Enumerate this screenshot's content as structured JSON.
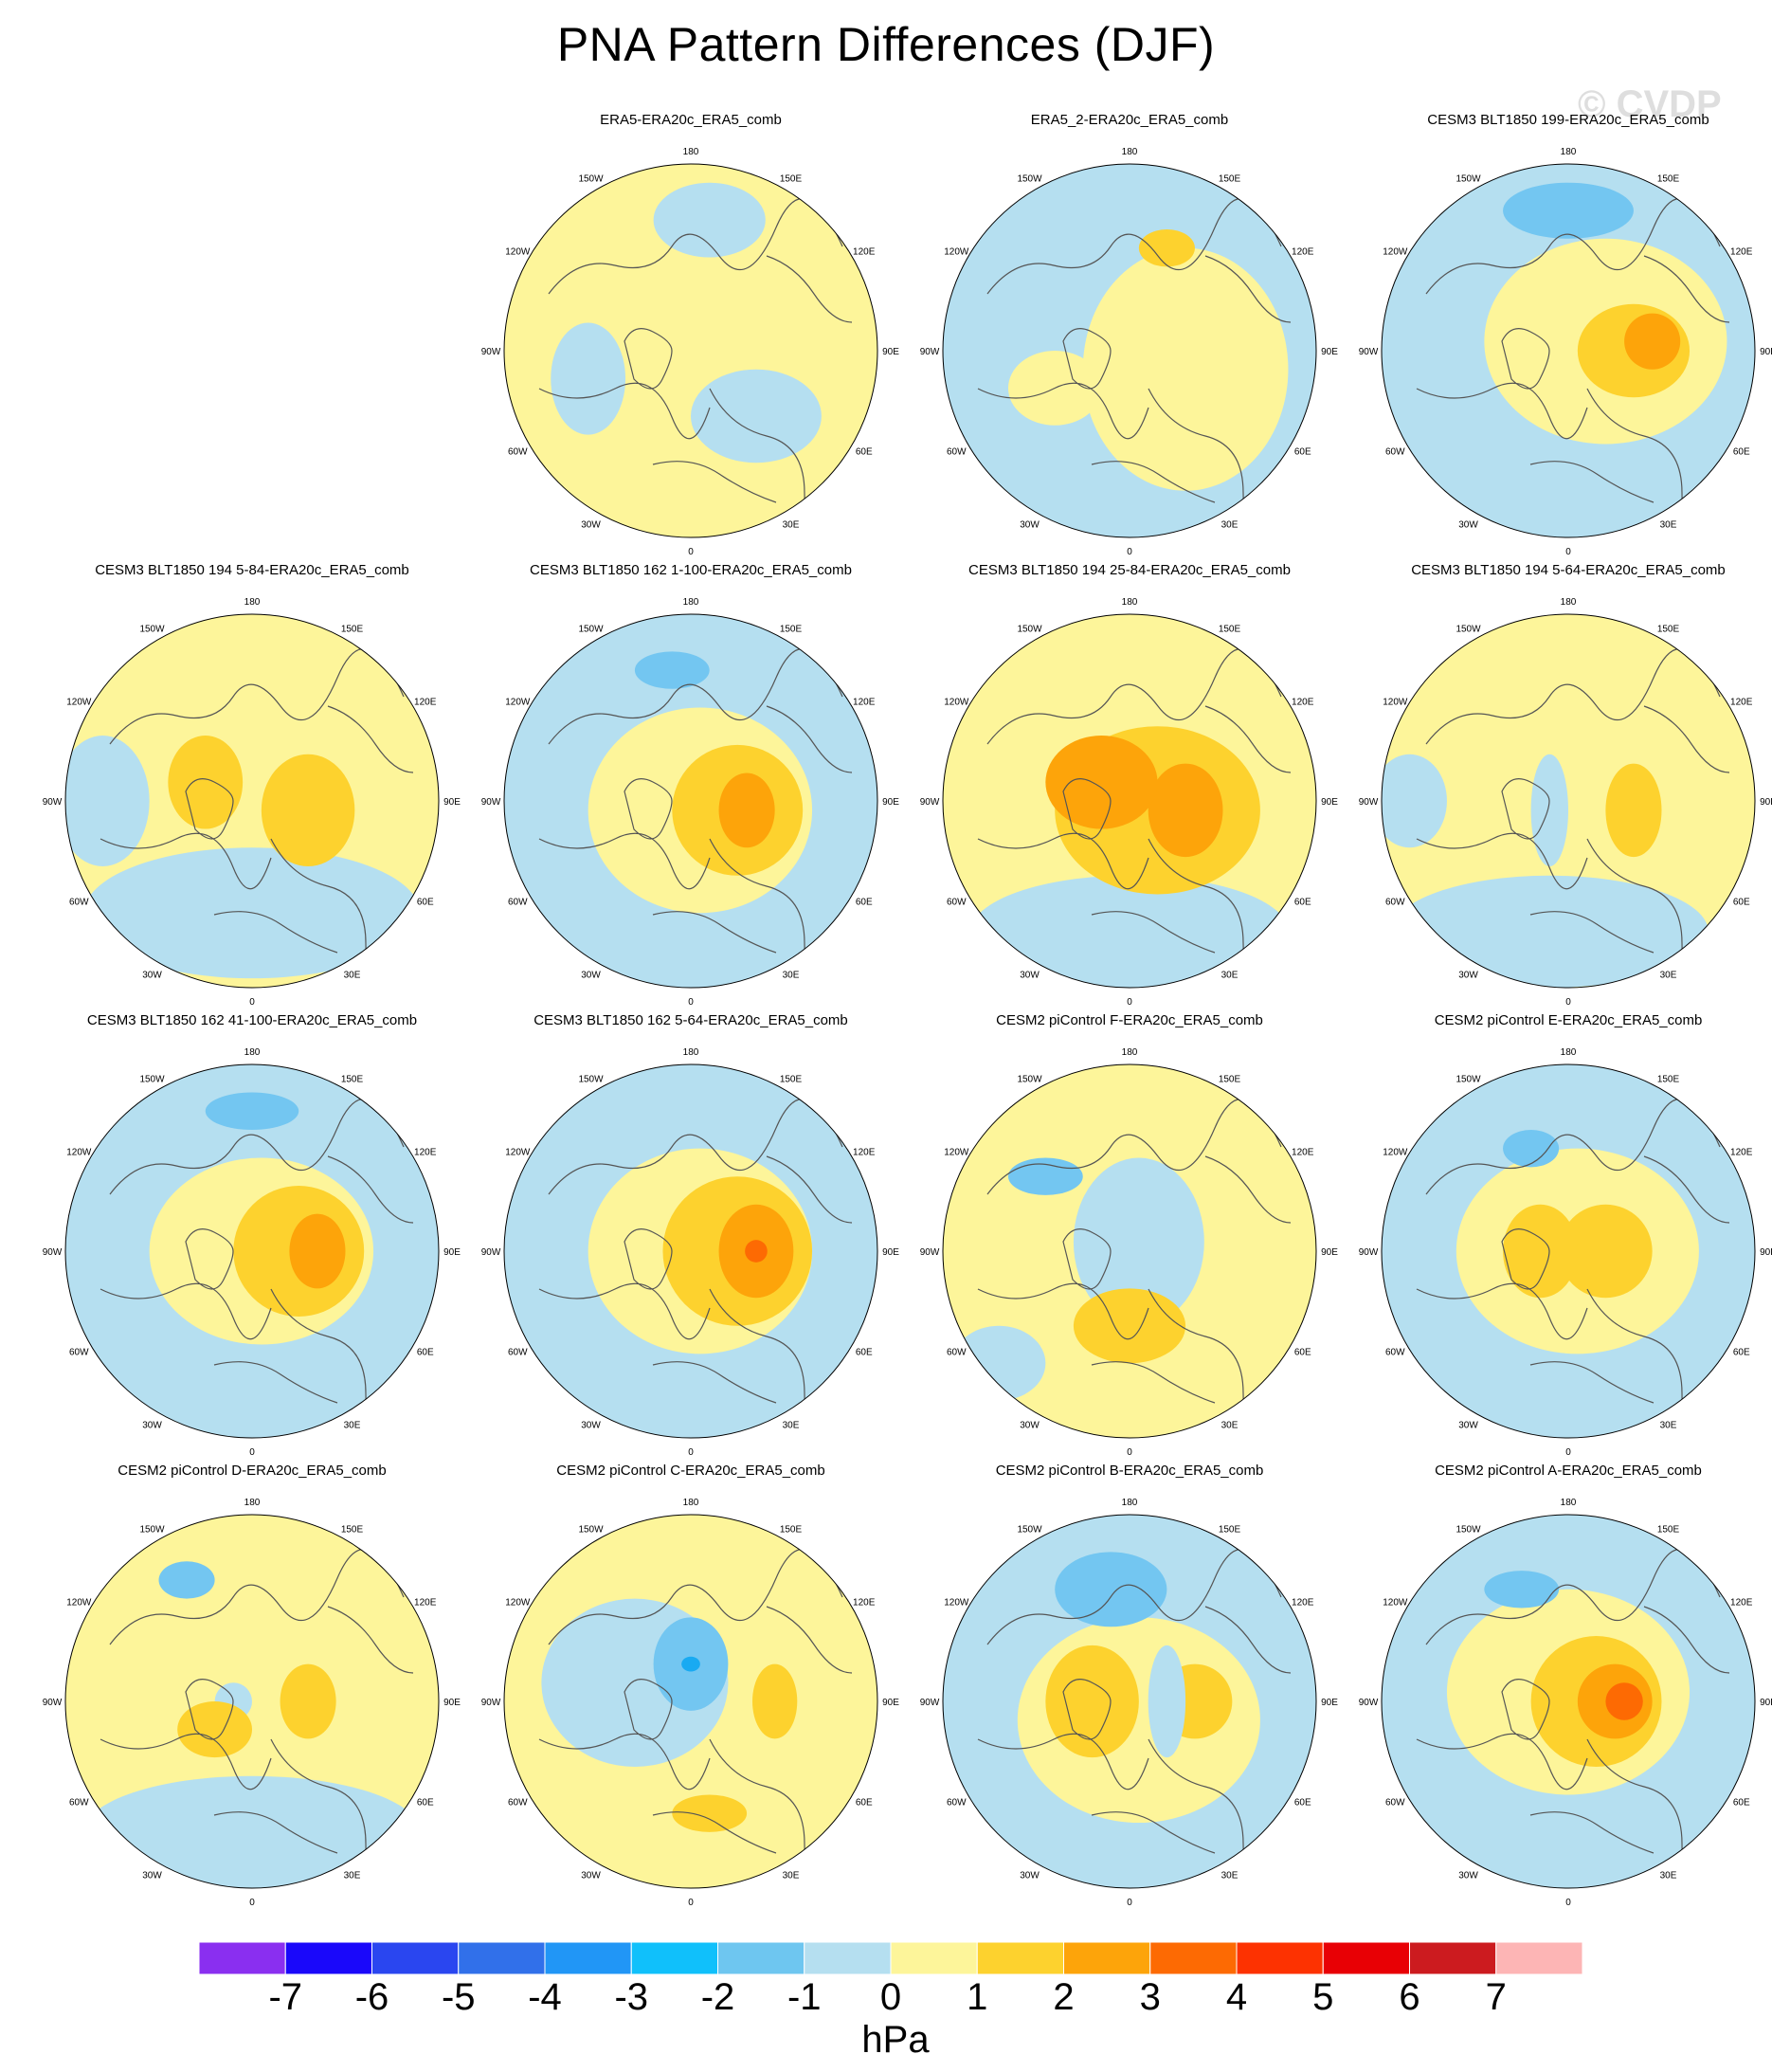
{
  "title": "PNA Pattern Differences (DJF)",
  "watermark": "© CVDP",
  "colors": {
    "ocean_neg1": "#b5dff0",
    "pos1": "#fdf59a",
    "pos2": "#fdd22e",
    "pos3": "#fda40a",
    "neg2": "#73c6f1",
    "neg3": "#19aaf2",
    "pos4": "#fd6a03",
    "coast": "#555555"
  },
  "longitude_labels": [
    "180",
    "150E",
    "120E",
    "90E",
    "60E",
    "30E",
    "0",
    "30W",
    "60W",
    "90W",
    "120W",
    "150W"
  ],
  "panels": [
    {
      "title": "ERA5-ERA20c_ERA5_comb",
      "base": "pos1",
      "blobs": [
        [
          0.35,
          0.35,
          0.35,
          0.25,
          "ocean_neg1"
        ],
        [
          -0.55,
          0.15,
          0.2,
          0.3,
          "ocean_neg1"
        ],
        [
          0.1,
          -0.7,
          0.3,
          0.2,
          "ocean_neg1"
        ]
      ]
    },
    {
      "title": "ERA5_2-ERA20c_ERA5_comb",
      "base": "ocean_neg1",
      "blobs": [
        [
          0.3,
          0.1,
          0.55,
          0.65,
          "pos1"
        ],
        [
          0.2,
          -0.55,
          0.15,
          0.1,
          "pos2"
        ],
        [
          -0.4,
          0.2,
          0.25,
          0.2,
          "pos1"
        ]
      ]
    },
    {
      "title": "CESM3 BLT1850 199-ERA20c_ERA5_comb",
      "base": "ocean_neg1",
      "blobs": [
        [
          0.2,
          -0.05,
          0.65,
          0.55,
          "pos1"
        ],
        [
          0.35,
          0.0,
          0.3,
          0.25,
          "pos2"
        ],
        [
          0.45,
          -0.05,
          0.15,
          0.15,
          "pos3"
        ],
        [
          0.0,
          -0.75,
          0.35,
          0.15,
          "neg2"
        ]
      ]
    },
    {
      "title": "CESM3 BLT1850 194 5-84-ERA20c_ERA5_comb",
      "base": "pos1",
      "blobs": [
        [
          0.0,
          0.6,
          0.9,
          0.35,
          "ocean_neg1"
        ],
        [
          -0.8,
          0.0,
          0.25,
          0.35,
          "ocean_neg1"
        ],
        [
          0.3,
          0.05,
          0.25,
          0.3,
          "pos2"
        ],
        [
          -0.25,
          -0.1,
          0.2,
          0.25,
          "pos2"
        ]
      ]
    },
    {
      "title": "CESM3 BLT1850 162 1-100-ERA20c_ERA5_comb",
      "base": "ocean_neg1",
      "blobs": [
        [
          0.05,
          0.05,
          0.6,
          0.55,
          "pos1"
        ],
        [
          0.25,
          0.05,
          0.35,
          0.35,
          "pos2"
        ],
        [
          0.3,
          0.05,
          0.15,
          0.2,
          "pos3"
        ],
        [
          -0.1,
          -0.7,
          0.2,
          0.1,
          "neg2"
        ]
      ]
    },
    {
      "title": "CESM3 BLT1850 194 25-84-ERA20c_ERA5_comb",
      "base": "pos1",
      "blobs": [
        [
          0.0,
          0.7,
          0.85,
          0.3,
          "ocean_neg1"
        ],
        [
          0.15,
          0.05,
          0.55,
          0.45,
          "pos2"
        ],
        [
          0.3,
          0.05,
          0.2,
          0.25,
          "pos3"
        ],
        [
          -0.15,
          -0.1,
          0.3,
          0.25,
          "pos3"
        ]
      ]
    },
    {
      "title": "CESM3 BLT1850 194 5-64-ERA20c_ERA5_comb",
      "base": "pos1",
      "blobs": [
        [
          -0.1,
          0.7,
          0.85,
          0.3,
          "ocean_neg1"
        ],
        [
          -0.1,
          0.05,
          0.1,
          0.3,
          "ocean_neg1"
        ],
        [
          0.35,
          0.05,
          0.15,
          0.25,
          "pos2"
        ],
        [
          -0.85,
          0.0,
          0.2,
          0.25,
          "ocean_neg1"
        ]
      ]
    },
    {
      "title": "CESM3 BLT1850 162 41-100-ERA20c_ERA5_comb",
      "base": "ocean_neg1",
      "blobs": [
        [
          0.05,
          0.0,
          0.6,
          0.5,
          "pos1"
        ],
        [
          0.25,
          0.0,
          0.35,
          0.35,
          "pos2"
        ],
        [
          0.35,
          0.0,
          0.15,
          0.2,
          "pos3"
        ],
        [
          0.0,
          -0.75,
          0.25,
          0.1,
          "neg2"
        ]
      ]
    },
    {
      "title": "CESM3 BLT1850 162 5-64-ERA20c_ERA5_comb",
      "base": "ocean_neg1",
      "blobs": [
        [
          0.05,
          0.0,
          0.6,
          0.55,
          "pos1"
        ],
        [
          0.25,
          0.0,
          0.4,
          0.4,
          "pos2"
        ],
        [
          0.35,
          0.0,
          0.2,
          0.25,
          "pos3"
        ],
        [
          0.35,
          0.0,
          0.06,
          0.06,
          "pos4"
        ]
      ]
    },
    {
      "title": "CESM2 piControl F-ERA20c_ERA5_comb",
      "base": "pos1",
      "blobs": [
        [
          0.05,
          -0.05,
          0.35,
          0.45,
          "ocean_neg1"
        ],
        [
          -0.7,
          0.6,
          0.25,
          0.2,
          "ocean_neg1"
        ],
        [
          0.0,
          0.4,
          0.3,
          0.2,
          "pos2"
        ],
        [
          -0.45,
          -0.4,
          0.2,
          0.1,
          "neg2"
        ]
      ]
    },
    {
      "title": "CESM2 piControl E-ERA20c_ERA5_comb",
      "base": "ocean_neg1",
      "blobs": [
        [
          0.05,
          0.0,
          0.65,
          0.55,
          "pos1"
        ],
        [
          0.2,
          0.0,
          0.25,
          0.25,
          "pos2"
        ],
        [
          -0.15,
          0.0,
          0.2,
          0.25,
          "pos2"
        ],
        [
          -0.2,
          -0.55,
          0.15,
          0.1,
          "neg2"
        ]
      ]
    },
    {
      "title": "CESM2 piControl D-ERA20c_ERA5_comb",
      "base": "pos1",
      "blobs": [
        [
          0.0,
          0.7,
          0.9,
          0.3,
          "ocean_neg1"
        ],
        [
          -0.1,
          0.0,
          0.1,
          0.1,
          "ocean_neg1"
        ],
        [
          0.3,
          0.0,
          0.15,
          0.2,
          "pos2"
        ],
        [
          -0.2,
          0.15,
          0.2,
          0.15,
          "pos2"
        ],
        [
          -0.35,
          -0.65,
          0.15,
          0.1,
          "neg2"
        ]
      ]
    },
    {
      "title": "CESM2 piControl C-ERA20c_ERA5_comb",
      "base": "pos1",
      "blobs": [
        [
          -0.3,
          -0.1,
          0.5,
          0.45,
          "ocean_neg1"
        ],
        [
          0.0,
          -0.2,
          0.2,
          0.25,
          "neg2"
        ],
        [
          0.0,
          -0.2,
          0.05,
          0.04,
          "neg3"
        ],
        [
          0.45,
          0.0,
          0.12,
          0.2,
          "pos2"
        ],
        [
          0.1,
          0.6,
          0.2,
          0.1,
          "pos2"
        ]
      ]
    },
    {
      "title": "CESM2 piControl B-ERA20c_ERA5_comb",
      "base": "ocean_neg1",
      "blobs": [
        [
          0.05,
          0.1,
          0.65,
          0.55,
          "pos1"
        ],
        [
          -0.2,
          0.0,
          0.25,
          0.3,
          "pos2"
        ],
        [
          0.35,
          0.0,
          0.2,
          0.2,
          "pos2"
        ],
        [
          -0.1,
          -0.6,
          0.3,
          0.2,
          "neg2"
        ],
        [
          0.2,
          0.0,
          0.1,
          0.3,
          "ocean_neg1"
        ]
      ]
    },
    {
      "title": "CESM2 piControl A-ERA20c_ERA5_comb",
      "base": "ocean_neg1",
      "blobs": [
        [
          0.0,
          -0.05,
          0.65,
          0.55,
          "pos1"
        ],
        [
          0.15,
          0.0,
          0.35,
          0.35,
          "pos2"
        ],
        [
          0.25,
          0.0,
          0.2,
          0.2,
          "pos3"
        ],
        [
          0.3,
          0.0,
          0.1,
          0.1,
          "pos4"
        ],
        [
          -0.25,
          -0.6,
          0.2,
          0.1,
          "neg2"
        ]
      ]
    }
  ],
  "colorbar": {
    "colors": [
      "#8a2ff0",
      "#1a08fa",
      "#2a46f0",
      "#3170ea",
      "#2196f6",
      "#10c0fb",
      "#6ec6f0",
      "#b5dff0",
      "#fdf59a",
      "#fdd22e",
      "#fda40a",
      "#fd6a03",
      "#fd3201",
      "#e80005",
      "#cc1b1f",
      "#fdb5b5"
    ],
    "labels": [
      "-7",
      "-6",
      "-5",
      "-4",
      "-3",
      "-2",
      "-1",
      "0",
      "1",
      "2",
      "3",
      "4",
      "5",
      "6",
      "7"
    ],
    "unit": "hPa"
  }
}
